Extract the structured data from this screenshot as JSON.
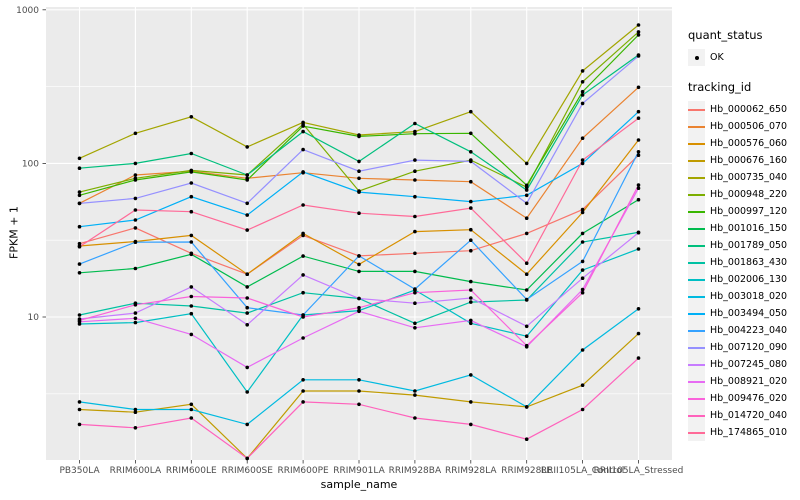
{
  "chart_data": {
    "type": "line",
    "title": "",
    "xlabel": "sample_name",
    "ylabel": "FPKM + 1",
    "y_scale": "log10",
    "ylim": [
      1.15,
      1100
    ],
    "y_ticks": [
      "10",
      "100",
      "1000"
    ],
    "y_minor_ticks": [
      3.162,
      31.62,
      316.2
    ],
    "grid": "on",
    "panel_bg": "#EBEBEB",
    "grid_color": "#FFFFFF",
    "tick_color": "#333333",
    "axis_text_color": "#4D4D4D",
    "point_color": "#000000",
    "categories": [
      "PB350LA",
      "RRIM600LA",
      "RRIM600LE",
      "RRIM600SE",
      "RRIM600PE",
      "RRIM901LA",
      "RRIM928BA",
      "RRIM928LA",
      "RRIM928LE",
      "RRII105LA_Control",
      "RRII105LA_Stressed"
    ],
    "series": [
      {
        "name": "Hb_000062_650",
        "color": "#F8766D",
        "values": [
          30,
          38,
          26,
          19,
          34,
          25,
          26,
          27,
          35,
          50,
          113
        ]
      },
      {
        "name": "Hb_000506_070",
        "color": "#EA8331",
        "values": [
          55,
          84,
          89,
          80,
          87,
          80,
          78,
          76,
          44,
          146,
          313
        ]
      },
      {
        "name": "Hb_000576_060",
        "color": "#D89000",
        "values": [
          29,
          31,
          34,
          19,
          35,
          22,
          36,
          37,
          19,
          48,
          142
        ]
      },
      {
        "name": "Hb_000676_160",
        "color": "#C09B00",
        "values": [
          2.5,
          2.4,
          2.7,
          1.2,
          3.3,
          3.3,
          3.1,
          2.8,
          2.6,
          3.6,
          7.8
        ]
      },
      {
        "name": "Hb_000735_040",
        "color": "#A3A500",
        "values": [
          108,
          157,
          201,
          128,
          185,
          153,
          161,
          217,
          100,
          400,
          796
        ]
      },
      {
        "name": "Hb_000948_220",
        "color": "#7CAE00",
        "values": [
          65,
          80,
          90,
          84,
          180,
          66,
          89,
          105,
          70,
          340,
          718
        ]
      },
      {
        "name": "Hb_000997_120",
        "color": "#39B600",
        "values": [
          62,
          78,
          88,
          78,
          175,
          150,
          156,
          157,
          72,
          293,
          686
        ]
      },
      {
        "name": "Hb_001016_150",
        "color": "#00BB4E",
        "values": [
          19.4,
          20.7,
          25.6,
          15.7,
          24.9,
          19.8,
          19.8,
          17,
          15,
          35,
          58
        ]
      },
      {
        "name": "Hb_001789_050",
        "color": "#00BF7D",
        "values": [
          93,
          100,
          116,
          84,
          161,
          103,
          182,
          119,
          67,
          279,
          508
        ]
      },
      {
        "name": "Hb_001863_430",
        "color": "#00C1A3",
        "values": [
          10.3,
          12.3,
          11.8,
          10.6,
          14.4,
          13.2,
          9.1,
          12.5,
          12.9,
          30.8,
          35.6
        ]
      },
      {
        "name": "Hb_002006_130",
        "color": "#00BFC4",
        "values": [
          9.0,
          9.2,
          10.5,
          3.25,
          10.3,
          11,
          15,
          9.1,
          7.5,
          20.2,
          27.7
        ]
      },
      {
        "name": "Hb_003018_020",
        "color": "#00BAE0",
        "values": [
          2.8,
          2.5,
          2.5,
          2.0,
          3.9,
          3.9,
          3.3,
          4.2,
          2.6,
          6.1,
          11.3
        ]
      },
      {
        "name": "Hb_003494_050",
        "color": "#00B0F6",
        "values": [
          38.7,
          42.8,
          60.7,
          46.1,
          88,
          65,
          60.7,
          56.4,
          62,
          100,
          217
        ]
      },
      {
        "name": "Hb_004223_040",
        "color": "#35A2FF",
        "values": [
          22.1,
          30.7,
          30.8,
          11.5,
          10.3,
          25,
          15.2,
          31.6,
          13,
          23,
          119
        ]
      },
      {
        "name": "Hb_007120_090",
        "color": "#9590FF",
        "values": [
          54.9,
          59.2,
          74.5,
          55,
          123,
          88.9,
          105,
          103,
          55,
          246,
          500
        ]
      },
      {
        "name": "Hb_007245_080",
        "color": "#C77CFF",
        "values": [
          9.7,
          10.6,
          15.7,
          8.9,
          18.8,
          13.2,
          12.3,
          13.3,
          8.7,
          17.9,
          35.4
        ]
      },
      {
        "name": "Hb_008921_020",
        "color": "#E76BF3",
        "values": [
          9.3,
          9.8,
          7.7,
          4.7,
          7.3,
          10.9,
          8.5,
          9.5,
          6.4,
          15.1,
          68.9
        ]
      },
      {
        "name": "Hb_009476_020",
        "color": "#FA62DB",
        "values": [
          9.5,
          12,
          13.6,
          13.3,
          10,
          11.5,
          14.4,
          15,
          6.5,
          14.4,
          72.3
        ]
      },
      {
        "name": "Hb_014720_040",
        "color": "#FF62BC",
        "values": [
          2.0,
          1.9,
          2.2,
          1.2,
          2.8,
          2.7,
          2.2,
          2.0,
          1.6,
          2.5,
          5.4
        ]
      },
      {
        "name": "Hb_174865_010",
        "color": "#FF6A98",
        "values": [
          28.7,
          49.7,
          48.5,
          36.8,
          53.6,
          47.4,
          45.1,
          51.2,
          22.4,
          105,
          197
        ]
      }
    ],
    "legend": {
      "position": "right",
      "quant_status_title": "quant_status",
      "quant_status_item": "OK",
      "tracking_id_title": "tracking_id"
    }
  }
}
